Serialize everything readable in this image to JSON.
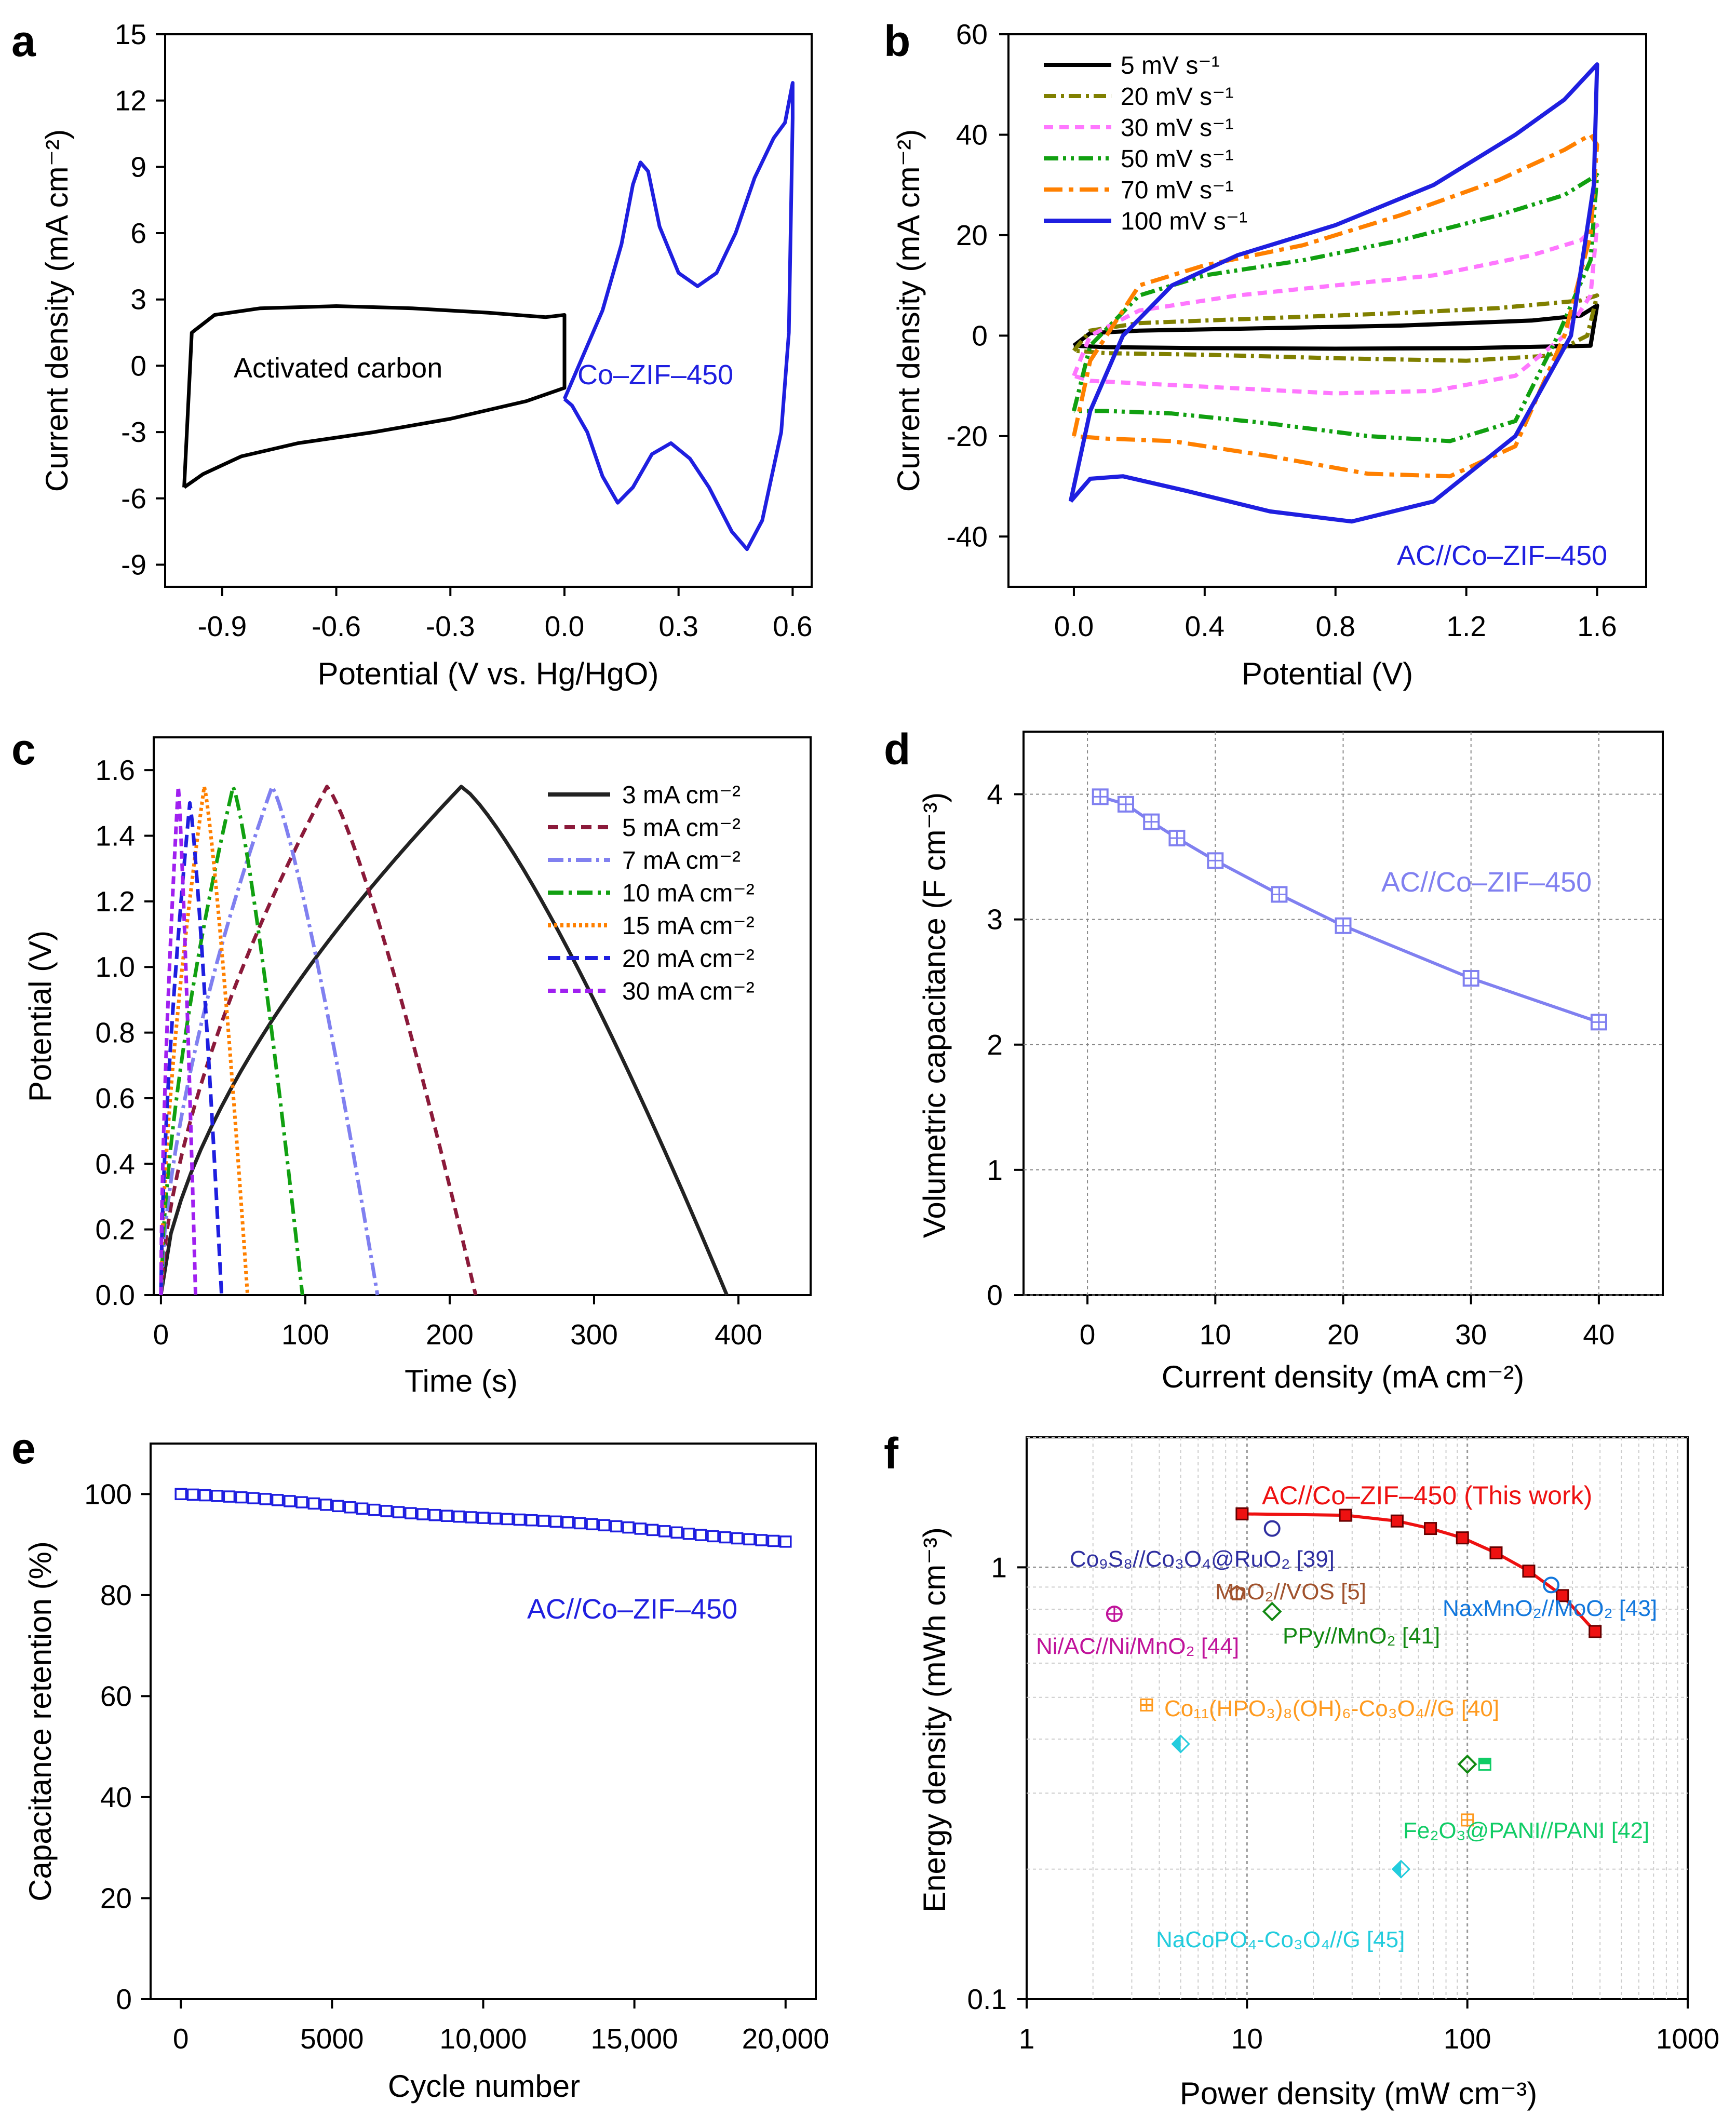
{
  "chart_data": [
    {
      "panel": "a",
      "type": "line",
      "xlabel": "Potential (V vs. Hg/HgO)",
      "ylabel": "Current density (mA cm⁻²)",
      "xlim": [
        -1.05,
        0.65
      ],
      "ylim": [
        -10,
        15
      ],
      "x_ticks": [
        -0.9,
        -0.6,
        -0.3,
        0.0,
        0.3,
        0.6
      ],
      "x_tick_labels": [
        "-0.9",
        "-0.6",
        "-0.3",
        "0.0",
        "0.3",
        "0.6"
      ],
      "y_ticks": [
        -9,
        -6,
        -3,
        0,
        3,
        6,
        9,
        12,
        15
      ],
      "y_tick_labels": [
        "-9",
        "-6",
        "-3",
        "0",
        "3",
        "6",
        "9",
        "12",
        "15"
      ],
      "series": [
        {
          "name": "Activated carbon",
          "color": "#000000",
          "x": [
            -1.0,
            -0.98,
            -0.92,
            -0.8,
            -0.6,
            -0.4,
            -0.2,
            -0.05,
            0.0,
            0.0,
            -0.1,
            -0.3,
            -0.5,
            -0.7,
            -0.85,
            -0.95,
            -1.0
          ],
          "y": [
            -5.5,
            1.5,
            2.3,
            2.6,
            2.7,
            2.6,
            2.4,
            2.2,
            2.3,
            -1.0,
            -1.6,
            -2.4,
            -3.0,
            -3.5,
            -4.1,
            -4.9,
            -5.5
          ]
        },
        {
          "name": "Co–ZIF–450",
          "color": "#1f1fe0",
          "x": [
            0.0,
            0.05,
            0.1,
            0.15,
            0.18,
            0.2,
            0.22,
            0.25,
            0.3,
            0.35,
            0.4,
            0.45,
            0.5,
            0.55,
            0.58,
            0.6,
            0.6,
            0.59,
            0.57,
            0.52,
            0.48,
            0.44,
            0.38,
            0.33,
            0.28,
            0.23,
            0.18,
            0.14,
            0.1,
            0.06,
            0.02,
            0.0
          ],
          "y": [
            -1.5,
            0.5,
            2.5,
            5.5,
            8.2,
            9.2,
            8.8,
            6.3,
            4.2,
            3.6,
            4.2,
            6.0,
            8.5,
            10.3,
            11.0,
            12.8,
            11.2,
            1.5,
            -3.0,
            -7.0,
            -8.3,
            -7.5,
            -5.5,
            -4.2,
            -3.5,
            -4.0,
            -5.5,
            -6.2,
            -5.0,
            -3.0,
            -1.8,
            -1.5
          ]
        }
      ],
      "annotations": [
        "Activated carbon",
        "Co–ZIF–450"
      ]
    },
    {
      "panel": "b",
      "type": "line",
      "xlabel": "Potential (V)",
      "ylabel": "Current density (mA cm⁻²)",
      "xlim": [
        -0.2,
        1.75
      ],
      "ylim": [
        -50,
        60
      ],
      "x_ticks": [
        0.0,
        0.4,
        0.8,
        1.2,
        1.6
      ],
      "x_tick_labels": [
        "0.0",
        "0.4",
        "0.8",
        "1.2",
        "1.6"
      ],
      "y_ticks": [
        -40,
        -20,
        0,
        20,
        40,
        60
      ],
      "y_tick_labels": [
        "-40",
        "-20",
        "0",
        "20",
        "40",
        "60"
      ],
      "legend": [
        "5 mV s⁻¹",
        "20 mV s⁻¹",
        "30 mV s⁻¹",
        "50 mV s⁻¹",
        "70 mV s⁻¹",
        "100 mV s⁻¹"
      ],
      "series": [
        {
          "name": "5 mV s⁻¹",
          "color": "#000000",
          "dash": "",
          "upper": [
            [
              0.0,
              -2
            ],
            [
              0.05,
              0.5
            ],
            [
              0.2,
              1
            ],
            [
              0.6,
              1.5
            ],
            [
              1.0,
              2
            ],
            [
              1.4,
              3
            ],
            [
              1.55,
              4
            ],
            [
              1.6,
              6
            ]
          ],
          "lower": [
            [
              1.6,
              6
            ],
            [
              1.58,
              -2
            ],
            [
              1.2,
              -2.5
            ],
            [
              0.8,
              -2.6
            ],
            [
              0.4,
              -2.5
            ],
            [
              0.1,
              -2.3
            ],
            [
              0.0,
              -2
            ]
          ]
        },
        {
          "name": "20 mV s⁻¹",
          "color": "#808000",
          "dash": "24 9 6 9",
          "upper": [
            [
              0.0,
              -3
            ],
            [
              0.05,
              1
            ],
            [
              0.2,
              2.5
            ],
            [
              0.6,
              3.5
            ],
            [
              1.0,
              4.5
            ],
            [
              1.3,
              5.5
            ],
            [
              1.55,
              7
            ],
            [
              1.6,
              8
            ]
          ],
          "lower": [
            [
              1.6,
              8
            ],
            [
              1.57,
              0
            ],
            [
              1.45,
              -4
            ],
            [
              1.2,
              -5
            ],
            [
              0.8,
              -4.5
            ],
            [
              0.4,
              -3.8
            ],
            [
              0.1,
              -3.5
            ],
            [
              0.0,
              -3
            ]
          ]
        },
        {
          "name": "30 mV s⁻¹",
          "color": "#ff77ff",
          "dash": "18 12",
          "upper": [
            [
              0.0,
              -8
            ],
            [
              0.05,
              0
            ],
            [
              0.2,
              5
            ],
            [
              0.5,
              8
            ],
            [
              0.8,
              10
            ],
            [
              1.1,
              12
            ],
            [
              1.4,
              16
            ],
            [
              1.55,
              19
            ],
            [
              1.6,
              22
            ]
          ],
          "lower": [
            [
              1.6,
              22
            ],
            [
              1.58,
              8
            ],
            [
              1.5,
              0
            ],
            [
              1.35,
              -8
            ],
            [
              1.1,
              -11
            ],
            [
              0.8,
              -11.5
            ],
            [
              0.5,
              -10.5
            ],
            [
              0.2,
              -9.5
            ],
            [
              0.05,
              -9
            ],
            [
              0.0,
              -8
            ]
          ]
        },
        {
          "name": "50 mV s⁻¹",
          "color": "#11a011",
          "dash": "28 9 6 9 6 9",
          "upper": [
            [
              0.0,
              -15
            ],
            [
              0.05,
              -2
            ],
            [
              0.2,
              8
            ],
            [
              0.4,
              12
            ],
            [
              0.7,
              15
            ],
            [
              1.0,
              19
            ],
            [
              1.3,
              24
            ],
            [
              1.5,
              28
            ],
            [
              1.6,
              32
            ]
          ],
          "lower": [
            [
              1.6,
              32
            ],
            [
              1.58,
              15
            ],
            [
              1.48,
              0
            ],
            [
              1.35,
              -17
            ],
            [
              1.15,
              -21
            ],
            [
              0.9,
              -20
            ],
            [
              0.6,
              -17.5
            ],
            [
              0.3,
              -15.5
            ],
            [
              0.1,
              -15
            ],
            [
              0.0,
              -15
            ]
          ]
        },
        {
          "name": "70 mV s⁻¹",
          "color": "#ff8000",
          "dash": "36 12 9 12",
          "upper": [
            [
              0.0,
              -20
            ],
            [
              0.05,
              -5
            ],
            [
              0.2,
              10
            ],
            [
              0.4,
              14
            ],
            [
              0.7,
              18
            ],
            [
              1.0,
              24
            ],
            [
              1.3,
              31
            ],
            [
              1.5,
              37
            ],
            [
              1.58,
              40
            ],
            [
              1.6,
              38
            ]
          ],
          "lower": [
            [
              1.6,
              38
            ],
            [
              1.58,
              20
            ],
            [
              1.5,
              0
            ],
            [
              1.35,
              -22
            ],
            [
              1.15,
              -28
            ],
            [
              0.9,
              -27.5
            ],
            [
              0.6,
              -24
            ],
            [
              0.3,
              -21
            ],
            [
              0.1,
              -20.5
            ],
            [
              0.0,
              -20
            ]
          ]
        },
        {
          "name": "100 mV s⁻¹",
          "color": "#1f1fe0",
          "dash": "",
          "upper": [
            [
              -0.01,
              -33
            ],
            [
              0.05,
              -15
            ],
            [
              0.15,
              0
            ],
            [
              0.3,
              10
            ],
            [
              0.5,
              16
            ],
            [
              0.8,
              22
            ],
            [
              1.1,
              30
            ],
            [
              1.35,
              40
            ],
            [
              1.5,
              47
            ],
            [
              1.6,
              54
            ]
          ],
          "lower": [
            [
              1.6,
              54
            ],
            [
              1.59,
              30
            ],
            [
              1.52,
              0
            ],
            [
              1.35,
              -20
            ],
            [
              1.1,
              -33
            ],
            [
              0.85,
              -37
            ],
            [
              0.6,
              -35
            ],
            [
              0.35,
              -31
            ],
            [
              0.15,
              -28
            ],
            [
              0.05,
              -28.5
            ],
            [
              -0.01,
              -33
            ]
          ]
        }
      ],
      "annotations": [
        "AC//Co–ZIF–450"
      ]
    },
    {
      "panel": "c",
      "type": "line",
      "xlabel": "Time (s)",
      "ylabel": "Potential (V)",
      "xlim": [
        -5,
        450
      ],
      "ylim": [
        0.0,
        1.7
      ],
      "x_ticks": [
        0,
        100,
        200,
        300,
        400
      ],
      "x_tick_labels": [
        "0",
        "100",
        "200",
        "300",
        "400"
      ],
      "y_ticks": [
        0.0,
        0.2,
        0.4,
        0.6,
        0.8,
        1.0,
        1.2,
        1.4,
        1.6
      ],
      "y_tick_labels": [
        "0.0",
        "0.2",
        "0.4",
        "0.6",
        "0.8",
        "1.0",
        "1.2",
        "1.4",
        "1.6"
      ],
      "legend": [
        "3 mA cm⁻²",
        "5 mA cm⁻²",
        "7 mA cm⁻²",
        "10 mA cm⁻²",
        "15 mA cm⁻²",
        "20 mA cm⁻²",
        "30 mA cm⁻²"
      ],
      "series": [
        {
          "name": "3 mA cm⁻²",
          "color": "#222222",
          "dash": "",
          "t_peak": 208,
          "t_end": 392,
          "v_max": 1.55
        },
        {
          "name": "5 mA cm⁻²",
          "color": "#8b1a3a",
          "dash": "20 12",
          "t_peak": 115,
          "t_end": 218,
          "v_max": 1.55
        },
        {
          "name": "7 mA cm⁻²",
          "color": "#8080f0",
          "dash": "30 9 6 9",
          "t_peak": 77,
          "t_end": 150,
          "v_max": 1.55
        },
        {
          "name": "10 mA cm⁻²",
          "color": "#11a011",
          "dash": "30 10 6 10",
          "t_peak": 50,
          "t_end": 98,
          "v_max": 1.55
        },
        {
          "name": "15 mA cm⁻²",
          "color": "#ff8000",
          "dash": "6 6",
          "t_peak": 30,
          "t_end": 60,
          "v_max": 1.55
        },
        {
          "name": "20 mA cm⁻²",
          "color": "#1f1fe0",
          "dash": "24 12",
          "t_peak": 20,
          "t_end": 42,
          "v_max": 1.5
        },
        {
          "name": "30 mA cm⁻²",
          "color": "#a020f0",
          "dash": "15 9",
          "t_peak": 12,
          "t_end": 24,
          "v_max": 1.55
        }
      ]
    },
    {
      "panel": "d",
      "type": "line",
      "xlabel": "Current density (mA cm⁻²)",
      "ylabel": "Volumetric capacitance (F cm⁻³)",
      "xlim": [
        -5,
        45
      ],
      "ylim": [
        0,
        4.5
      ],
      "grid": true,
      "x_ticks": [
        0,
        10,
        20,
        30,
        40
      ],
      "x_tick_labels": [
        "0",
        "10",
        "20",
        "30",
        "40"
      ],
      "y_ticks": [
        0,
        1,
        2,
        3,
        4
      ],
      "y_tick_labels": [
        "0",
        "1",
        "2",
        "3",
        "4"
      ],
      "x": [
        1,
        3,
        5,
        7,
        10,
        15,
        20,
        30,
        40
      ],
      "values": [
        3.98,
        3.92,
        3.78,
        3.65,
        3.47,
        3.2,
        2.95,
        2.53,
        2.18
      ],
      "series_name": "AC//Co–ZIF–450",
      "color": "#8080f0"
    },
    {
      "panel": "e",
      "type": "scatter",
      "xlabel": "Cycle number",
      "ylabel": "Capacitance retention (%)",
      "xlim": [
        -1000,
        21000
      ],
      "ylim": [
        0,
        110
      ],
      "x_ticks": [
        0,
        5000,
        10000,
        15000,
        20000
      ],
      "x_tick_labels": [
        "0",
        "5000",
        "10,000",
        "15,000",
        "20,000"
      ],
      "y_ticks": [
        0,
        20,
        40,
        60,
        80,
        100
      ],
      "y_tick_labels": [
        "0",
        "20",
        "40",
        "60",
        "80",
        "100"
      ],
      "x_start": 0,
      "x_end": 20000,
      "x_step": 400,
      "y_start": 100,
      "y_end": 90.8,
      "series_name": "AC//Co–ZIF–450",
      "color": "#1f1fe0"
    },
    {
      "panel": "f",
      "type": "scatter",
      "xscale": "log",
      "yscale": "log",
      "xlabel": "Power density (mW cm⁻³)",
      "ylabel": "Energy density (mWh cm⁻³)",
      "xlim": [
        1,
        1000
      ],
      "ylim": [
        0.1,
        2
      ],
      "grid": true,
      "x_ticks": [
        1,
        10,
        100,
        1000
      ],
      "x_tick_labels": [
        "1",
        "10",
        "100",
        "1000"
      ],
      "y_ticks": [
        0.1,
        1
      ],
      "y_tick_labels": [
        "0.1",
        "1"
      ],
      "this_work": {
        "name": "AC//Co–ZIF–450 (This work)",
        "color": "#ee1111",
        "x": [
          9.5,
          28,
          48,
          68,
          95,
          135,
          190,
          270,
          380
        ],
        "y": [
          1.33,
          1.32,
          1.28,
          1.23,
          1.17,
          1.08,
          0.98,
          0.86,
          0.71
        ]
      },
      "references": [
        {
          "label": "Co₉S₈//Co₃O₄@RuO₂ [39]",
          "color": "#2f2fa0",
          "marker": "circle",
          "points": [
            [
              13,
              1.23
            ]
          ]
        },
        {
          "label": "MnO₂//VOS [5]",
          "color": "#a0522d",
          "marker": "pentagon",
          "points": [
            [
              9,
              0.87
            ]
          ]
        },
        {
          "label": "NaxMnO₂//MoO₂ [43]",
          "color": "#1177dd",
          "marker": "circle",
          "points": [
            [
              240,
              0.91
            ]
          ]
        },
        {
          "label": "Ni/AC//Ni/MnO₂ [44]",
          "color": "#c0139a",
          "marker": "circle-cross",
          "points": [
            [
              2.5,
              0.78
            ]
          ]
        },
        {
          "label": "PPy//MnO₂ [41]",
          "color": "#118811",
          "marker": "diamond",
          "points": [
            [
              13,
              0.79
            ],
            [
              100,
              0.35
            ]
          ]
        },
        {
          "label": "Co₁₁(HPO₃)₈(OH)₆-Co₃O₄//G [40]",
          "color": "#ff9a1e",
          "marker": "square-cross",
          "points": [
            [
              3.5,
              0.48
            ],
            [
              100,
              0.26
            ]
          ]
        },
        {
          "label": "Fe₂O₃@PANI//PANI [42]",
          "color": "#11cc66",
          "marker": "half-square",
          "points": [
            [
              120,
              0.35
            ]
          ]
        },
        {
          "label": "NaCoPO₄-Co₃O₄//G [45]",
          "color": "#22ccdd",
          "marker": "half-diamond",
          "points": [
            [
              5,
              0.39
            ],
            [
              50,
              0.2
            ]
          ]
        }
      ]
    }
  ]
}
